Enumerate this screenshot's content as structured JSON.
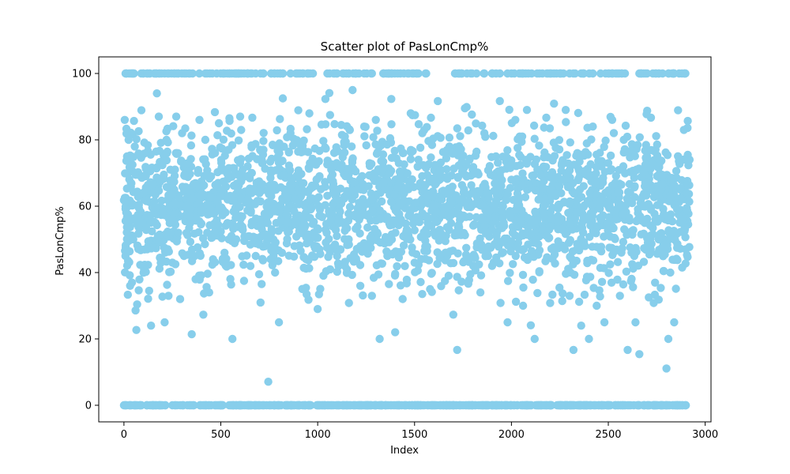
{
  "chart_data": {
    "type": "scatter",
    "title": "Scatter plot of PasLonCmp%",
    "xlabel": "Index",
    "ylabel": "PasLonCmp%",
    "xlim": [
      -130,
      3030
    ],
    "ylim": [
      -5,
      105
    ],
    "x_ticks": [
      0,
      500,
      1000,
      1500,
      2000,
      2500,
      3000
    ],
    "y_ticks": [
      0,
      20,
      40,
      60,
      80,
      100
    ],
    "grid": false,
    "legend": "none",
    "point_color": "#87CEEB",
    "n_points": 2914,
    "points": [
      [
        0,
        61.8
      ],
      [
        4,
        86
      ],
      [
        8,
        45
      ],
      [
        12,
        58.1
      ],
      [
        16,
        75
      ],
      [
        20,
        33.3
      ],
      [
        24,
        80
      ],
      [
        28,
        56
      ],
      [
        32,
        36
      ],
      [
        36,
        67
      ],
      [
        40,
        100
      ],
      [
        44,
        72.5
      ],
      [
        48,
        50
      ],
      [
        52,
        85.7
      ],
      [
        56,
        78
      ],
      [
        60,
        28.6
      ],
      [
        64,
        22.7
      ],
      [
        68,
        30.4
      ],
      [
        72,
        57
      ],
      [
        76,
        82.6
      ],
      [
        80,
        37.9
      ],
      [
        84,
        42.3
      ],
      [
        90,
        88.9
      ],
      [
        100,
        64
      ],
      [
        110,
        69
      ],
      [
        120,
        47
      ],
      [
        130,
        34.5
      ],
      [
        140,
        24
      ],
      [
        150,
        66.7
      ],
      [
        160,
        55
      ],
      [
        170,
        94
      ],
      [
        180,
        87
      ],
      [
        190,
        42.9
      ],
      [
        200,
        58
      ],
      [
        210,
        25
      ],
      [
        220,
        80
      ],
      [
        230,
        33
      ],
      [
        240,
        71
      ],
      [
        250,
        43
      ],
      [
        260,
        65
      ],
      [
        270,
        87
      ],
      [
        280,
        52
      ],
      [
        290,
        32
      ],
      [
        300,
        82
      ],
      [
        310,
        45
      ],
      [
        320,
        60
      ],
      [
        330,
        73
      ],
      [
        340,
        57
      ],
      [
        350,
        21.4
      ],
      [
        360,
        66.7
      ],
      [
        370,
        38
      ],
      [
        380,
        47.6
      ],
      [
        390,
        86
      ],
      [
        400,
        58
      ],
      [
        410,
        27.3
      ],
      [
        420,
        80
      ],
      [
        430,
        52
      ],
      [
        440,
        34
      ],
      [
        450,
        69
      ],
      [
        460,
        44
      ],
      [
        470,
        76
      ],
      [
        480,
        55
      ],
      [
        490,
        85
      ],
      [
        500,
        63
      ],
      [
        520,
        44
      ],
      [
        540,
        77
      ],
      [
        560,
        20
      ],
      [
        580,
        50
      ],
      [
        600,
        87
      ],
      [
        620,
        37.5
      ],
      [
        640,
        62
      ],
      [
        660,
        70
      ],
      [
        680,
        45
      ],
      [
        700,
        56
      ],
      [
        720,
        77
      ],
      [
        745,
        7.1
      ],
      [
        760,
        63
      ],
      [
        780,
        40
      ],
      [
        800,
        25
      ],
      [
        820,
        92.5
      ],
      [
        840,
        55
      ],
      [
        860,
        83.3
      ],
      [
        880,
        48
      ],
      [
        900,
        88.9
      ],
      [
        920,
        66.7
      ],
      [
        940,
        41.2
      ],
      [
        960,
        73
      ],
      [
        980,
        52
      ],
      [
        1000,
        29
      ],
      [
        1020,
        84.6
      ],
      [
        1040,
        92.3
      ],
      [
        1060,
        94.1
      ],
      [
        1080,
        64
      ],
      [
        1100,
        45
      ],
      [
        1120,
        71.4
      ],
      [
        1140,
        81
      ],
      [
        1160,
        50
      ],
      [
        1180,
        95
      ],
      [
        1200,
        65
      ],
      [
        1220,
        36
      ],
      [
        1240,
        84
      ],
      [
        1260,
        57
      ],
      [
        1280,
        33
      ],
      [
        1300,
        86
      ],
      [
        1320,
        20
      ],
      [
        1340,
        67
      ],
      [
        1360,
        45
      ],
      [
        1380,
        92.3
      ],
      [
        1400,
        22
      ],
      [
        1420,
        60
      ],
      [
        1440,
        76
      ],
      [
        1460,
        53
      ],
      [
        1480,
        88
      ],
      [
        1500,
        43
      ],
      [
        1520,
        74
      ],
      [
        1540,
        82
      ],
      [
        1560,
        57
      ],
      [
        1580,
        35
      ],
      [
        1600,
        68
      ],
      [
        1620,
        91.7
      ],
      [
        1640,
        62
      ],
      [
        1660,
        46
      ],
      [
        1680,
        78
      ],
      [
        1700,
        27.3
      ],
      [
        1720,
        16.7
      ],
      [
        1740,
        57
      ],
      [
        1760,
        89.5
      ],
      [
        1780,
        44
      ],
      [
        1800,
        71
      ],
      [
        1820,
        63
      ],
      [
        1840,
        34
      ],
      [
        1860,
        82
      ],
      [
        1880,
        52
      ],
      [
        1900,
        42
      ],
      [
        1920,
        75
      ],
      [
        1940,
        91.7
      ],
      [
        1960,
        55
      ],
      [
        1980,
        25
      ],
      [
        2000,
        68
      ],
      [
        2020,
        86
      ],
      [
        2040,
        47
      ],
      [
        2060,
        30
      ],
      [
        2080,
        89
      ],
      [
        2100,
        24.1
      ],
      [
        2120,
        20
      ],
      [
        2140,
        62
      ],
      [
        2160,
        53
      ],
      [
        2180,
        86.7
      ],
      [
        2200,
        30.8
      ],
      [
        2220,
        90.9
      ],
      [
        2240,
        57
      ],
      [
        2260,
        68
      ],
      [
        2280,
        89
      ],
      [
        2300,
        33
      ],
      [
        2320,
        16.7
      ],
      [
        2340,
        76
      ],
      [
        2360,
        24
      ],
      [
        2380,
        48
      ],
      [
        2400,
        20
      ],
      [
        2420,
        84
      ],
      [
        2440,
        30
      ],
      [
        2460,
        62
      ],
      [
        2480,
        25
      ],
      [
        2500,
        73
      ],
      [
        2520,
        86
      ],
      [
        2540,
        56
      ],
      [
        2560,
        33
      ],
      [
        2580,
        80
      ],
      [
        2600,
        16.7
      ],
      [
        2620,
        46
      ],
      [
        2640,
        25
      ],
      [
        2660,
        15.4
      ],
      [
        2680,
        60
      ],
      [
        2700,
        75
      ],
      [
        2720,
        86.7
      ],
      [
        2740,
        33.3
      ],
      [
        2760,
        50
      ],
      [
        2780,
        66.7
      ],
      [
        2800,
        11.1
      ],
      [
        2810,
        20
      ],
      [
        2820,
        40
      ],
      [
        2840,
        25
      ],
      [
        2860,
        88.9
      ],
      [
        2870,
        74
      ],
      [
        2880,
        56
      ],
      [
        2890,
        83
      ],
      [
        2900,
        47
      ],
      [
        2910,
        85.7
      ]
    ],
    "band_points": {
      "y100": [
        [
          44,
          100
        ],
        [
          52,
          100
        ],
        [
          168,
          100
        ],
        [
          184,
          100
        ],
        [
          226,
          100
        ],
        [
          260,
          100
        ],
        [
          280,
          100
        ],
        [
          320,
          100
        ],
        [
          340,
          100
        ],
        [
          420,
          100
        ],
        [
          456,
          100
        ],
        [
          500,
          100
        ],
        [
          520,
          100
        ],
        [
          580,
          100
        ],
        [
          620,
          100
        ],
        [
          640,
          100
        ],
        [
          680,
          100
        ],
        [
          720,
          100
        ],
        [
          760,
          100
        ],
        [
          820,
          100
        ],
        [
          860,
          100
        ],
        [
          900,
          100
        ],
        [
          950,
          100
        ],
        [
          1050,
          100
        ],
        [
          1100,
          100
        ],
        [
          1130,
          100
        ],
        [
          1160,
          100
        ],
        [
          1200,
          100
        ],
        [
          1240,
          100
        ],
        [
          1280,
          100
        ],
        [
          1340,
          100
        ],
        [
          1380,
          100
        ],
        [
          1470,
          100
        ],
        [
          1520,
          100
        ],
        [
          1560,
          100
        ],
        [
          1730,
          100
        ],
        [
          1770,
          100
        ],
        [
          1820,
          100
        ],
        [
          1860,
          100
        ],
        [
          1900,
          100
        ],
        [
          1940,
          100
        ],
        [
          2000,
          100
        ],
        [
          2040,
          100
        ],
        [
          2160,
          100
        ],
        [
          2220,
          100
        ],
        [
          2250,
          100
        ],
        [
          2300,
          100
        ],
        [
          2360,
          100
        ],
        [
          2420,
          100
        ],
        [
          2460,
          100
        ],
        [
          2500,
          100
        ],
        [
          2540,
          100
        ],
        [
          2570,
          100
        ],
        [
          2660,
          100
        ],
        [
          2700,
          100
        ],
        [
          2730,
          100
        ],
        [
          2760,
          100
        ],
        [
          2780,
          100
        ],
        [
          2840,
          100
        ],
        [
          2880,
          100
        ],
        [
          2895,
          100
        ]
      ],
      "y0": [
        [
          0,
          0
        ],
        [
          30,
          0
        ],
        [
          60,
          0
        ],
        [
          90,
          0
        ],
        [
          150,
          0
        ],
        [
          200,
          0
        ],
        [
          250,
          0
        ],
        [
          300,
          0
        ],
        [
          350,
          0
        ],
        [
          400,
          0
        ],
        [
          450,
          0
        ],
        [
          500,
          0
        ],
        [
          550,
          0
        ],
        [
          600,
          0
        ],
        [
          650,
          0
        ],
        [
          700,
          0
        ],
        [
          750,
          0
        ],
        [
          800,
          0
        ],
        [
          850,
          0
        ],
        [
          900,
          0
        ],
        [
          950,
          0
        ],
        [
          1000,
          0
        ],
        [
          1050,
          0
        ],
        [
          1100,
          0
        ],
        [
          1150,
          0
        ],
        [
          1250,
          0
        ],
        [
          1300,
          0
        ],
        [
          1350,
          0
        ],
        [
          1400,
          0
        ],
        [
          1450,
          0
        ],
        [
          1500,
          0
        ],
        [
          1550,
          0
        ],
        [
          1600,
          0
        ],
        [
          1650,
          0
        ],
        [
          1700,
          0
        ],
        [
          1750,
          0
        ],
        [
          1800,
          0
        ],
        [
          1850,
          0
        ],
        [
          1900,
          0
        ],
        [
          1950,
          0
        ],
        [
          2000,
          0
        ],
        [
          2050,
          0
        ],
        [
          2100,
          0
        ],
        [
          2150,
          0
        ],
        [
          2200,
          0
        ],
        [
          2250,
          0
        ],
        [
          2300,
          0
        ],
        [
          2350,
          0
        ],
        [
          2400,
          0
        ],
        [
          2450,
          0
        ],
        [
          2500,
          0
        ],
        [
          2550,
          0
        ],
        [
          2600,
          0
        ],
        [
          2650,
          0
        ],
        [
          2700,
          0
        ],
        [
          2750,
          0
        ],
        [
          2800,
          0
        ],
        [
          2850,
          0
        ],
        [
          2880,
          0
        ],
        [
          2900,
          0
        ]
      ]
    },
    "main_cloud": {
      "x_range": [
        0,
        2920
      ],
      "y_range": [
        40,
        80
      ],
      "count": 2400
    }
  }
}
